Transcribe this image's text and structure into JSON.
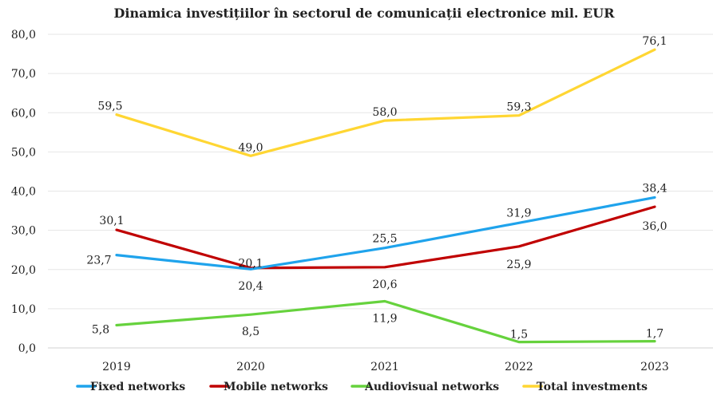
{
  "chart_data": {
    "type": "line",
    "title": "Dinamica investițiilor în sectorul de comunicații electronice mil. EUR",
    "categories": [
      "2019",
      "2020",
      "2021",
      "2022",
      "2023"
    ],
    "y_ticks": [
      "0,0",
      "10,0",
      "20,0",
      "30,0",
      "40,0",
      "50,0",
      "60,0",
      "70,0",
      "80,0"
    ],
    "ylim": [
      0,
      80
    ],
    "grid": true,
    "legend_position": "bottom",
    "series": [
      {
        "name": "Fixed networks",
        "color": "#1fa3ec",
        "values": [
          23.7,
          20.1,
          25.5,
          31.9,
          38.4
        ],
        "labels": [
          "23,7",
          "20,1",
          "25,5",
          "31,9",
          "38,4"
        ]
      },
      {
        "name": "Mobile networks",
        "color": "#c00000",
        "values": [
          30.1,
          20.4,
          20.6,
          25.9,
          36.0
        ],
        "labels": [
          "30,1",
          "20,4",
          "20,6",
          "25,9",
          "36,0"
        ]
      },
      {
        "name": "Audiovisual networks",
        "color": "#66d23d",
        "values": [
          5.8,
          8.5,
          11.9,
          1.5,
          1.7
        ],
        "labels": [
          "5,8",
          "8,5",
          "11,9",
          "1,5",
          "1,7"
        ]
      },
      {
        "name": "Total investments",
        "color": "#ffd633",
        "values": [
          59.5,
          49.0,
          58.0,
          59.3,
          76.1
        ],
        "labels": [
          "59,5",
          "49,0",
          "58,0",
          "59,3",
          "76,1"
        ]
      }
    ]
  }
}
